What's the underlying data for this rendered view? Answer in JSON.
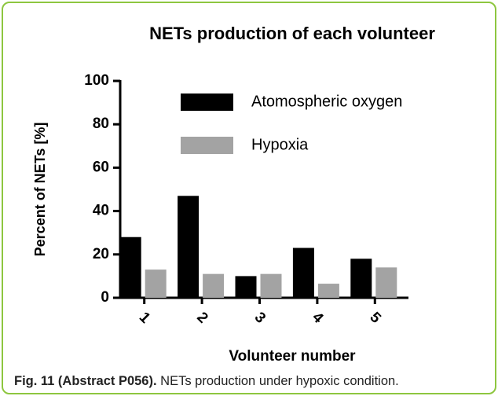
{
  "chart_data": {
    "type": "bar",
    "title": "NETs production of each volunteer",
    "x_label": "Volunteer number",
    "y_label": "Percent of NETs [%]",
    "categories": [
      "1",
      "2",
      "3",
      "4",
      "5"
    ],
    "series": [
      {
        "name": "Atomospheric oxygen",
        "color": "#000000",
        "values": [
          28,
          47,
          10,
          23,
          18
        ]
      },
      {
        "name": "Hypoxia",
        "color": "#a3a3a3",
        "values": [
          13,
          11,
          11,
          6.5,
          14
        ]
      }
    ],
    "ylim": [
      0,
      100
    ],
    "yticks": [
      0,
      20,
      40,
      60,
      80,
      100
    ],
    "legend": "top-right"
  },
  "caption": {
    "label": "Fig. 11 (Abstract P056).",
    "text": "NETs production under hypoxic condition."
  }
}
